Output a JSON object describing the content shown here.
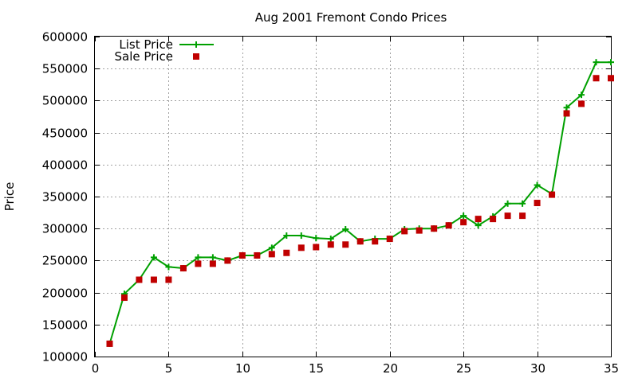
{
  "chart_data": {
    "type": "line",
    "title": "Aug 2001 Fremont Condo Prices",
    "xlabel": "",
    "ylabel": "Price",
    "xlim": [
      0,
      35
    ],
    "ylim": [
      100000,
      600000
    ],
    "xticks": [
      0,
      5,
      10,
      15,
      20,
      25,
      30,
      35
    ],
    "yticks": [
      100000,
      150000,
      200000,
      250000,
      300000,
      350000,
      400000,
      450000,
      500000,
      550000,
      600000
    ],
    "grid": true,
    "legend_position": "top-left",
    "series": [
      {
        "name": "List Price",
        "style": "line+cross",
        "color": "#00a000",
        "x": [
          1,
          2,
          3,
          4,
          5,
          6,
          7,
          8,
          9,
          10,
          11,
          12,
          13,
          14,
          15,
          16,
          17,
          18,
          19,
          20,
          21,
          22,
          23,
          24,
          25,
          26,
          27,
          28,
          29,
          30,
          31,
          32,
          33,
          34,
          35
        ],
        "y": [
          120000,
          198000,
          220000,
          255000,
          240000,
          238000,
          255000,
          255000,
          250000,
          258000,
          258000,
          270000,
          289000,
          289000,
          285000,
          284000,
          299000,
          280000,
          284000,
          284000,
          299000,
          300000,
          300000,
          305000,
          320000,
          305000,
          319000,
          339000,
          339000,
          368000,
          354000,
          489000,
          509000,
          560000,
          560000
        ]
      },
      {
        "name": "Sale Price",
        "style": "square",
        "color": "#c00000",
        "x": [
          1,
          2,
          3,
          4,
          5,
          6,
          7,
          8,
          9,
          10,
          11,
          12,
          13,
          14,
          15,
          16,
          17,
          18,
          19,
          20,
          21,
          22,
          23,
          24,
          25,
          26,
          27,
          28,
          29,
          30,
          31,
          32,
          33,
          34,
          35
        ],
        "y": [
          120000,
          192000,
          220000,
          220000,
          220000,
          238000,
          245000,
          245000,
          250000,
          258000,
          258000,
          260000,
          262000,
          270000,
          271000,
          275000,
          275000,
          280000,
          280000,
          284000,
          296000,
          297000,
          300000,
          305000,
          310000,
          315000,
          315000,
          320000,
          320000,
          340000,
          353000,
          480000,
          495000,
          535000,
          535000
        ]
      }
    ]
  }
}
